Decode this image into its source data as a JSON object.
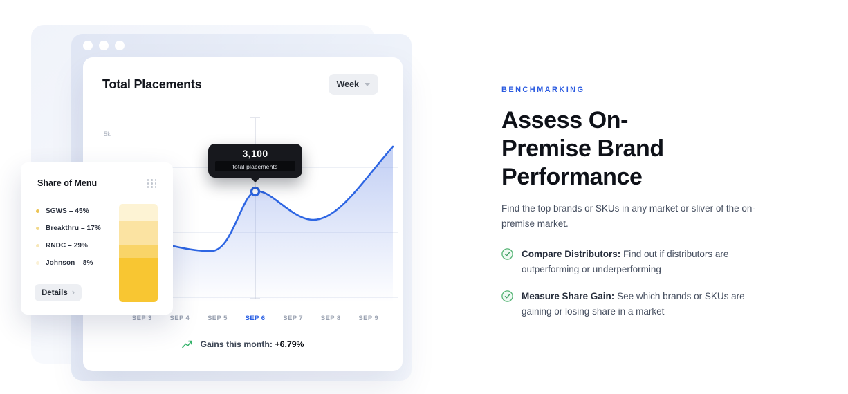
{
  "colors": {
    "accent_blue": "#2d62e4",
    "eyebrow_blue": "#2a5ae0",
    "success_green": "#4fae74",
    "window_tint": "#e0e6f4",
    "tooltip_bg": "#17181d"
  },
  "mockup": {
    "chart_card": {
      "title": "Total Placements",
      "period_selector": {
        "label": "Week"
      },
      "y_axis_label": "5k",
      "tooltip": {
        "value": "3,100",
        "label": "total placements"
      },
      "x_labels": [
        "SEP 3",
        "SEP 4",
        "SEP 5",
        "SEP 6",
        "SEP 7",
        "SEP 8",
        "SEP 9"
      ],
      "selected_x_label": "SEP 6",
      "footer": {
        "label": "Gains this month: ",
        "value": "+6.79%"
      }
    },
    "share_card": {
      "title": "Share of Menu",
      "items": [
        {
          "label": "SGWS – 45%",
          "bullet_color": "#ecc455"
        },
        {
          "label": "Breakthru – 17%",
          "bullet_color": "#f2d98c"
        },
        {
          "label": "RNDC – 29%",
          "bullet_color": "#f7e7b8"
        },
        {
          "label": "Johnson – 8%",
          "bullet_color": "#fbf1d6"
        }
      ],
      "details_label": "Details",
      "bar_segments": [
        {
          "color": "#fdf3d4",
          "height": 25
        },
        {
          "color": "#fbe3a2",
          "height": 34
        },
        {
          "color": "#f9d468",
          "height": 19
        },
        {
          "color": "#f8c632",
          "height": 64
        }
      ]
    }
  },
  "content": {
    "eyebrow": "BENCHMARKING",
    "title_lines": [
      "Assess On-",
      "Premise Brand",
      "Performance"
    ],
    "description": "Find the top brands or SKUs in any market or sliver of the on-premise market.",
    "bullets": [
      {
        "lead": "Compare Distributors:",
        "text": " Find out if distributors are outperforming or underperforming"
      },
      {
        "lead": "Measure Share Gain:",
        "text": " See which brands or SKUs are gaining or losing share in a market"
      }
    ]
  },
  "chart_data": [
    {
      "type": "line",
      "title": "Total Placements",
      "period": "Week",
      "x": [
        "SEP 3",
        "SEP 4",
        "SEP 5",
        "SEP 6",
        "SEP 7",
        "SEP 8",
        "SEP 9"
      ],
      "values_estimated": [
        1700,
        1550,
        1450,
        3100,
        2600,
        2450,
        3950
      ],
      "highlighted_point": {
        "x": "SEP 6",
        "value": 3100,
        "tooltip": "3,100 total placements"
      },
      "y_tick_labels": [
        "5k"
      ],
      "ylim": [
        0,
        5000
      ],
      "grid": true,
      "legend_position": "none",
      "footer_annotation": "Gains this month: +6.79%"
    },
    {
      "type": "bar",
      "stacked": true,
      "title": "Share of Menu",
      "categories": [
        "SGWS",
        "Breakthru",
        "RNDC",
        "Johnson"
      ],
      "values": [
        45,
        17,
        29,
        8
      ],
      "unit": "%"
    }
  ]
}
